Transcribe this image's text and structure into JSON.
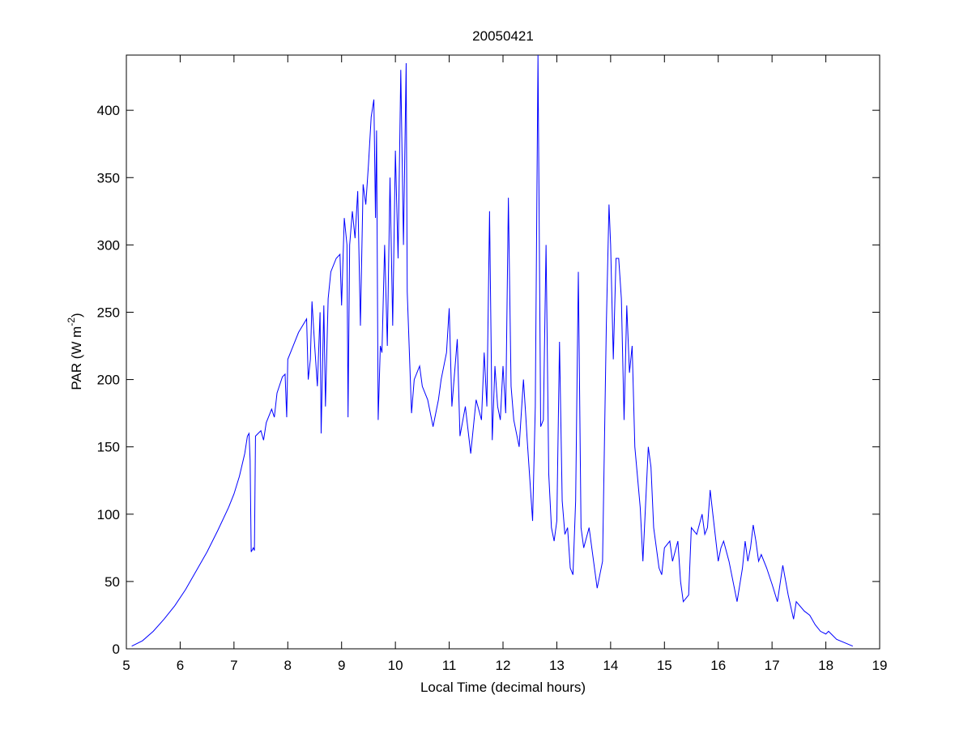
{
  "chart_data": {
    "type": "line",
    "title": "20050421",
    "x_label": "Local Time (decimal hours)",
    "y_label_parts": [
      "PAR (W m",
      "-2",
      ")"
    ],
    "color": "#0000ff",
    "xlim": [
      5,
      19
    ],
    "xticks": [
      5,
      6,
      7,
      8,
      9,
      10,
      11,
      12,
      13,
      14,
      15,
      16,
      17,
      18,
      19
    ],
    "ylim": [
      0,
      441
    ],
    "yticks": [
      0,
      50,
      100,
      150,
      200,
      250,
      300,
      350,
      400
    ],
    "x": [
      5.1,
      5.3,
      5.5,
      5.7,
      5.9,
      6.1,
      6.3,
      6.5,
      6.7,
      6.9,
      7.0,
      7.1,
      7.2,
      7.25,
      7.28,
      7.3,
      7.32,
      7.36,
      7.38,
      7.4,
      7.5,
      7.55,
      7.6,
      7.7,
      7.75,
      7.8,
      7.9,
      7.95,
      7.98,
      8.0,
      8.1,
      8.2,
      8.35,
      8.38,
      8.42,
      8.45,
      8.5,
      8.55,
      8.6,
      8.62,
      8.67,
      8.7,
      8.75,
      8.8,
      8.9,
      8.97,
      9.0,
      9.05,
      9.1,
      9.12,
      9.15,
      9.2,
      9.25,
      9.3,
      9.35,
      9.4,
      9.45,
      9.5,
      9.55,
      9.6,
      9.63,
      9.65,
      9.68,
      9.72,
      9.75,
      9.8,
      9.85,
      9.9,
      9.95,
      10.0,
      10.05,
      10.1,
      10.15,
      10.2,
      10.22,
      10.3,
      10.35,
      10.45,
      10.5,
      10.6,
      10.7,
      10.8,
      10.85,
      10.9,
      10.95,
      11.0,
      11.05,
      11.15,
      11.2,
      11.3,
      11.4,
      11.5,
      11.6,
      11.65,
      11.7,
      11.75,
      11.8,
      11.85,
      11.9,
      11.95,
      12.0,
      12.05,
      12.1,
      12.15,
      12.2,
      12.3,
      12.38,
      12.42,
      12.45,
      12.55,
      12.6,
      12.65,
      12.7,
      12.75,
      12.8,
      12.85,
      12.9,
      12.95,
      13.0,
      13.05,
      13.1,
      13.15,
      13.2,
      13.25,
      13.3,
      13.35,
      13.4,
      13.45,
      13.5,
      13.6,
      13.7,
      13.75,
      13.8,
      13.85,
      13.92,
      13.97,
      14.0,
      14.05,
      14.1,
      14.15,
      14.2,
      14.25,
      14.3,
      14.35,
      14.4,
      14.45,
      14.55,
      14.6,
      14.7,
      14.75,
      14.8,
      14.9,
      14.95,
      15.0,
      15.1,
      15.15,
      15.25,
      15.3,
      15.35,
      15.45,
      15.5,
      15.6,
      15.7,
      15.75,
      15.8,
      15.85,
      15.9,
      16.0,
      16.05,
      16.1,
      16.2,
      16.3,
      16.35,
      16.45,
      16.5,
      16.55,
      16.6,
      16.65,
      16.7,
      16.75,
      16.8,
      16.9,
      17.0,
      17.1,
      17.2,
      17.3,
      17.4,
      17.45,
      17.6,
      17.7,
      17.8,
      17.9,
      18.0,
      18.05,
      18.2,
      18.5
    ],
    "values": [
      2,
      6,
      13,
      22,
      32,
      44,
      58,
      72,
      88,
      105,
      115,
      128,
      145,
      158,
      160,
      140,
      72,
      75,
      73,
      158,
      162,
      155,
      168,
      178,
      172,
      190,
      202,
      204,
      172,
      215,
      225,
      235,
      245,
      200,
      215,
      258,
      225,
      195,
      250,
      160,
      255,
      180,
      260,
      280,
      290,
      293,
      255,
      320,
      300,
      172,
      300,
      325,
      305,
      340,
      240,
      345,
      330,
      360,
      395,
      408,
      320,
      385,
      170,
      225,
      220,
      300,
      225,
      350,
      240,
      370,
      290,
      430,
      300,
      435,
      265,
      175,
      200,
      210,
      195,
      185,
      165,
      185,
      200,
      210,
      220,
      253,
      180,
      230,
      158,
      180,
      145,
      185,
      170,
      220,
      180,
      325,
      155,
      210,
      180,
      170,
      210,
      175,
      335,
      195,
      170,
      150,
      200,
      175,
      155,
      95,
      180,
      441,
      165,
      170,
      300,
      130,
      90,
      80,
      95,
      228,
      110,
      85,
      90,
      60,
      55,
      110,
      280,
      90,
      75,
      90,
      60,
      45,
      55,
      65,
      240,
      330,
      300,
      215,
      290,
      290,
      260,
      170,
      255,
      205,
      225,
      150,
      105,
      65,
      150,
      135,
      90,
      60,
      55,
      75,
      80,
      65,
      80,
      50,
      35,
      40,
      90,
      85,
      100,
      85,
      90,
      118,
      100,
      65,
      75,
      80,
      65,
      45,
      35,
      60,
      80,
      65,
      75,
      92,
      80,
      65,
      70,
      60,
      48,
      35,
      62,
      40,
      22,
      35,
      28,
      25,
      18,
      13,
      11,
      13,
      7,
      2
    ]
  }
}
